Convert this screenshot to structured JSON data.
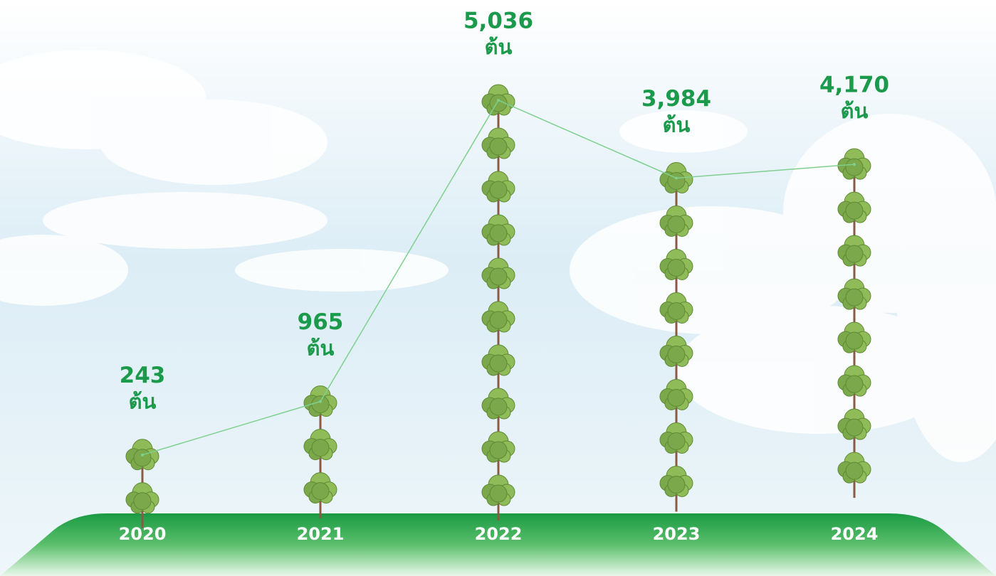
{
  "chart_data": {
    "type": "pictogram-line",
    "categories": [
      "2020",
      "2021",
      "2022",
      "2023",
      "2024"
    ],
    "values": [
      243,
      965,
      5036,
      3984,
      4170
    ],
    "value_labels": [
      "243",
      "965",
      "5,036",
      "3,984",
      "4,170"
    ],
    "unit": "ต้น",
    "color": "#7fd08f"
  }
}
